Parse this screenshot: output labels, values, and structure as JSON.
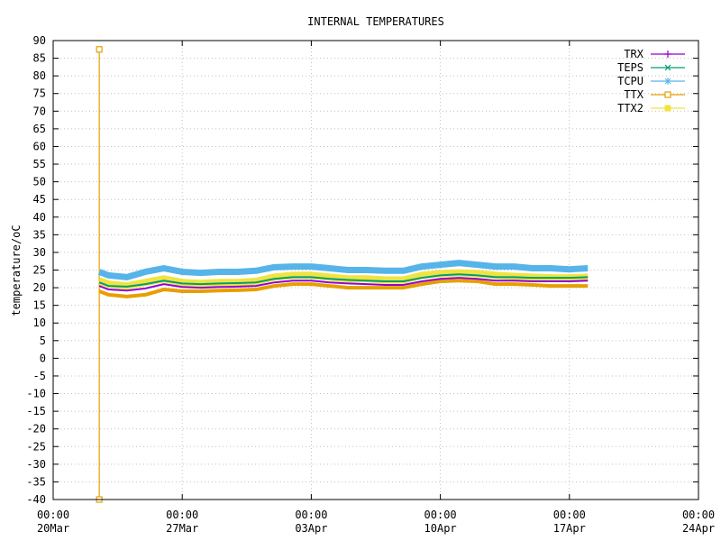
{
  "chart_data": {
    "type": "line",
    "title": "INTERNAL TEMPERATURES",
    "xlabel": "",
    "ylabel": "temperature/oC",
    "xlim": [
      "2024-03-20",
      "2024-04-24"
    ],
    "ylim": [
      -40,
      90
    ],
    "y_ticks": [
      "90",
      "85",
      "80",
      "75",
      "70",
      "65",
      "60",
      "55",
      "50",
      "45",
      "40",
      "35",
      "30",
      "25",
      "20",
      "15",
      "10",
      "5",
      "0",
      "-5",
      "-10",
      "-15",
      "-20",
      "-25",
      "-30",
      "-35",
      "-40"
    ],
    "x_ticks": [
      {
        "date": "2024-03-20",
        "time": "00:00",
        "day": "20Mar"
      },
      {
        "date": "2024-03-27",
        "time": "00:00",
        "day": "27Mar"
      },
      {
        "date": "2024-04-03",
        "time": "00:00",
        "day": "03Apr"
      },
      {
        "date": "2024-04-10",
        "time": "00:00",
        "day": "10Apr"
      },
      {
        "date": "2024-04-17",
        "time": "00:00",
        "day": "17Apr"
      },
      {
        "date": "2024-04-24",
        "time": "00:00",
        "day": "24Apr"
      }
    ],
    "grid": true,
    "legend_position": "top-right",
    "series": [
      {
        "name": "TRX",
        "color": "#9400d3",
        "marker": "plus",
        "x": [
          "2024-03-22T12:00",
          "2024-03-23T00:00",
          "2024-03-24T00:00",
          "2024-03-25T00:00",
          "2024-03-26T00:00",
          "2024-03-27T00:00",
          "2024-03-28T00:00",
          "2024-03-29T00:00",
          "2024-03-30T00:00",
          "2024-03-31T00:00",
          "2024-04-01T00:00",
          "2024-04-02T00:00",
          "2024-04-03T00:00",
          "2024-04-04T00:00",
          "2024-04-05T00:00",
          "2024-04-06T00:00",
          "2024-04-07T00:00",
          "2024-04-08T00:00",
          "2024-04-09T00:00",
          "2024-04-10T00:00",
          "2024-04-11T00:00",
          "2024-04-12T00:00",
          "2024-04-13T00:00",
          "2024-04-14T00:00",
          "2024-04-15T00:00",
          "2024-04-16T00:00",
          "2024-04-17T00:00",
          "2024-04-18T00:00"
        ],
        "y": [
          20.5,
          19.5,
          19.2,
          19.8,
          21,
          20.2,
          20,
          20.2,
          20.3,
          20.5,
          21.5,
          22,
          22,
          21.5,
          21.2,
          21,
          20.8,
          20.8,
          21.8,
          22.5,
          22.8,
          22.5,
          22,
          22,
          21.8,
          21.8,
          21.8,
          22
        ]
      },
      {
        "name": "TEPS",
        "color": "#009e73",
        "marker": "cross",
        "x": [
          "2024-03-22T12:00",
          "2024-03-23T00:00",
          "2024-03-24T00:00",
          "2024-03-25T00:00",
          "2024-03-26T00:00",
          "2024-03-27T00:00",
          "2024-03-28T00:00",
          "2024-03-29T00:00",
          "2024-03-30T00:00",
          "2024-03-31T00:00",
          "2024-04-01T00:00",
          "2024-04-02T00:00",
          "2024-04-03T00:00",
          "2024-04-04T00:00",
          "2024-04-05T00:00",
          "2024-04-06T00:00",
          "2024-04-07T00:00",
          "2024-04-08T00:00",
          "2024-04-09T00:00",
          "2024-04-10T00:00",
          "2024-04-11T00:00",
          "2024-04-12T00:00",
          "2024-04-13T00:00",
          "2024-04-14T00:00",
          "2024-04-15T00:00",
          "2024-04-16T00:00",
          "2024-04-17T00:00",
          "2024-04-18T00:00"
        ],
        "y": [
          21.5,
          20.5,
          20.3,
          21,
          22,
          21.2,
          21,
          21.2,
          21.3,
          21.5,
          22.5,
          23,
          23,
          22.5,
          22.2,
          22,
          21.8,
          21.8,
          22.8,
          23.5,
          23.8,
          23.5,
          23,
          23,
          22.8,
          22.8,
          22.8,
          23
        ]
      },
      {
        "name": "TCPU",
        "color": "#56b4e9",
        "marker": "star",
        "x": [
          "2024-03-22T12:00",
          "2024-03-23T00:00",
          "2024-03-24T00:00",
          "2024-03-25T00:00",
          "2024-03-26T00:00",
          "2024-03-27T00:00",
          "2024-03-28T00:00",
          "2024-03-29T00:00",
          "2024-03-30T00:00",
          "2024-03-31T00:00",
          "2024-04-01T00:00",
          "2024-04-02T00:00",
          "2024-04-03T00:00",
          "2024-04-04T00:00",
          "2024-04-05T00:00",
          "2024-04-06T00:00",
          "2024-04-07T00:00",
          "2024-04-08T00:00",
          "2024-04-09T00:00",
          "2024-04-10T00:00",
          "2024-04-11T00:00",
          "2024-04-12T00:00",
          "2024-04-13T00:00",
          "2024-04-14T00:00",
          "2024-04-15T00:00",
          "2024-04-16T00:00",
          "2024-04-17T00:00",
          "2024-04-18T00:00"
        ],
        "y": [
          24.5,
          23.5,
          23,
          24.5,
          25.5,
          24.5,
          24.2,
          24.5,
          24.5,
          24.8,
          25.8,
          26,
          26,
          25.5,
          25,
          25,
          24.8,
          24.8,
          26,
          26.5,
          27,
          26.5,
          26,
          26,
          25.5,
          25.5,
          25.2,
          25.5
        ]
      },
      {
        "name": "TTX",
        "color": "#e69f00",
        "marker": "square-open",
        "x": [
          "2024-03-22T12:00",
          "2024-03-22T12:00",
          "2024-03-22T12:00",
          "2024-03-23T00:00",
          "2024-03-24T00:00",
          "2024-03-25T00:00",
          "2024-03-26T00:00",
          "2024-03-27T00:00",
          "2024-03-28T00:00",
          "2024-03-29T00:00",
          "2024-03-30T00:00",
          "2024-03-31T00:00",
          "2024-04-01T00:00",
          "2024-04-02T00:00",
          "2024-04-03T00:00",
          "2024-04-04T00:00",
          "2024-04-05T00:00",
          "2024-04-06T00:00",
          "2024-04-07T00:00",
          "2024-04-08T00:00",
          "2024-04-09T00:00",
          "2024-04-10T00:00",
          "2024-04-11T00:00",
          "2024-04-12T00:00",
          "2024-04-13T00:00",
          "2024-04-14T00:00",
          "2024-04-15T00:00",
          "2024-04-16T00:00",
          "2024-04-17T00:00",
          "2024-04-18T00:00"
        ],
        "y": [
          87.5,
          -40,
          19,
          18,
          17.5,
          18,
          19.5,
          19,
          19,
          19.2,
          19.3,
          19.5,
          20.5,
          21,
          21,
          20.5,
          20,
          20,
          20,
          20,
          21,
          21.8,
          22,
          21.8,
          21,
          21,
          20.8,
          20.5,
          20.5,
          20.5
        ]
      },
      {
        "name": "TTX2",
        "color": "#f0e442",
        "marker": "square-filled",
        "x": [
          "2024-03-22T12:00",
          "2024-03-23T00:00",
          "2024-03-24T00:00",
          "2024-03-25T00:00",
          "2024-03-26T00:00",
          "2024-03-27T00:00",
          "2024-03-28T00:00",
          "2024-03-29T00:00",
          "2024-03-30T00:00",
          "2024-03-31T00:00",
          "2024-04-01T00:00",
          "2024-04-02T00:00",
          "2024-04-03T00:00",
          "2024-04-04T00:00",
          "2024-04-05T00:00",
          "2024-04-06T00:00",
          "2024-04-07T00:00",
          "2024-04-08T00:00",
          "2024-04-09T00:00",
          "2024-04-10T00:00",
          "2024-04-11T00:00",
          "2024-04-12T00:00",
          "2024-04-13T00:00",
          "2024-04-14T00:00",
          "2024-04-15T00:00",
          "2024-04-16T00:00",
          "2024-04-17T00:00",
          "2024-04-18T00:00"
        ],
        "y": [
          22,
          21,
          20.5,
          21.5,
          22.5,
          21.5,
          21.2,
          21.5,
          21.5,
          21.8,
          23,
          23.5,
          23.5,
          23,
          22.5,
          22.5,
          22.2,
          22.2,
          23.5,
          24,
          24.2,
          24,
          23.5,
          23.2,
          23,
          22.8,
          22.8,
          23
        ]
      }
    ]
  }
}
